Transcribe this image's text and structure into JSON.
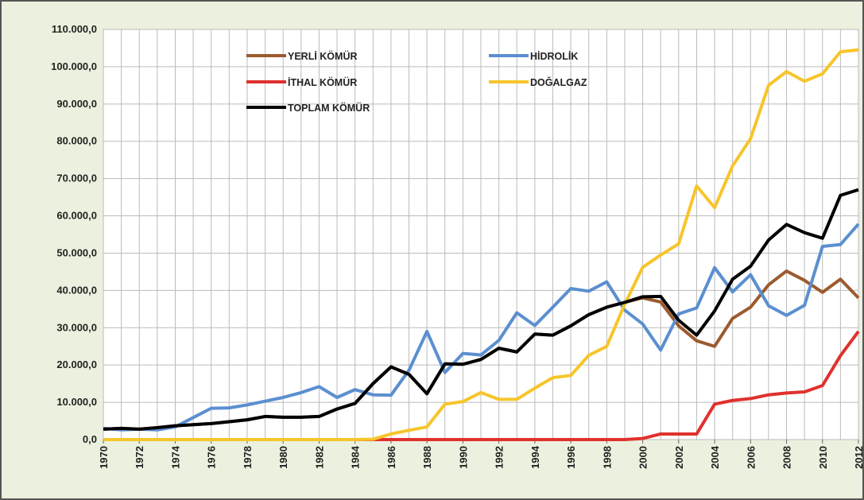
{
  "chart_data": {
    "type": "line",
    "x": [
      1970,
      1971,
      1972,
      1973,
      1974,
      1975,
      1976,
      1977,
      1978,
      1979,
      1980,
      1981,
      1982,
      1983,
      1984,
      1985,
      1986,
      1987,
      1988,
      1989,
      1990,
      1991,
      1992,
      1993,
      1994,
      1995,
      1996,
      1997,
      1998,
      1999,
      2000,
      2001,
      2002,
      2003,
      2004,
      2005,
      2006,
      2007,
      2008,
      2009,
      2010,
      2011,
      2012
    ],
    "xlim": [
      1970,
      2012
    ],
    "xticks": [
      1970,
      1972,
      1974,
      1976,
      1978,
      1980,
      1982,
      1984,
      1986,
      1988,
      1990,
      1992,
      1994,
      1996,
      1998,
      2000,
      2002,
      2004,
      2006,
      2008,
      2010,
      2012
    ],
    "ylim": [
      0,
      110000
    ],
    "yticks": [
      {
        "value": 0,
        "label": "0,0"
      },
      {
        "value": 10000,
        "label": "10.000,0"
      },
      {
        "value": 20000,
        "label": "20.000,0"
      },
      {
        "value": 30000,
        "label": "30.000,0"
      },
      {
        "value": 40000,
        "label": "40.000,0"
      },
      {
        "value": 50000,
        "label": "50.000,0"
      },
      {
        "value": 60000,
        "label": "60.000,0"
      },
      {
        "value": 70000,
        "label": "70.000,0"
      },
      {
        "value": 80000,
        "label": "80.000,0"
      },
      {
        "value": 90000,
        "label": "90.000,0"
      },
      {
        "value": 100000,
        "label": "100.000,0"
      },
      {
        "value": 110000,
        "label": "110.000,0"
      }
    ],
    "grid": true,
    "series": [
      {
        "name": "YERLİ KÖMÜR",
        "color": "#9b5a2e",
        "values": [
          2800,
          3000,
          2800,
          3200,
          3700,
          4000,
          4300,
          4800,
          5300,
          6200,
          6000,
          6000,
          6200,
          8200,
          9700,
          15000,
          19500,
          17500,
          12300,
          20300,
          20200,
          21500,
          24500,
          23500,
          28300,
          28000,
          30500,
          33500,
          35500,
          36800,
          38000,
          36900,
          30500,
          26500,
          25000,
          32500,
          35500,
          41500,
          45200,
          42700,
          39500,
          43000,
          38000
        ]
      },
      {
        "name": "İTHAL KÖMÜR",
        "color": "#e0312d",
        "values": [
          0,
          0,
          0,
          0,
          0,
          0,
          0,
          0,
          0,
          0,
          0,
          0,
          0,
          0,
          0,
          0,
          0,
          0,
          0,
          0,
          0,
          0,
          0,
          0,
          0,
          0,
          0,
          0,
          0,
          0,
          300,
          1500,
          1500,
          1500,
          9500,
          10500,
          11000,
          12000,
          12500,
          12800,
          14500,
          22500,
          29000
        ]
      },
      {
        "name": "HİDROLİK",
        "color": "#5b8fd0",
        "values": [
          3000,
          2600,
          2800,
          2600,
          3400,
          5900,
          8400,
          8500,
          9300,
          10300,
          11300,
          12600,
          14200,
          11300,
          13400,
          12000,
          11900,
          18600,
          29000,
          18000,
          23100,
          22700,
          26600,
          34000,
          30600,
          35500,
          40500,
          39800,
          42300,
          34700,
          31000,
          24000,
          33700,
          35300,
          46100,
          39600,
          44200,
          35900,
          33300,
          36000,
          51800,
          52300,
          57800
        ]
      },
      {
        "name": "DOĞALGAZ",
        "color": "#f7c52b",
        "values": [
          0,
          0,
          0,
          0,
          0,
          0,
          0,
          0,
          0,
          0,
          0,
          0,
          0,
          0,
          0,
          100,
          1500,
          2500,
          3400,
          9500,
          10200,
          12600,
          10800,
          10800,
          13800,
          16600,
          17200,
          22600,
          25000,
          36300,
          46200,
          49500,
          52500,
          68000,
          62200,
          73400,
          80700,
          95000,
          98700,
          96100,
          98100,
          104000,
          104500
        ]
      },
      {
        "name": "TOPLAM KÖMÜR",
        "color": "#000000",
        "values": [
          2800,
          3000,
          2800,
          3200,
          3700,
          4000,
          4300,
          4800,
          5300,
          6200,
          6000,
          6000,
          6200,
          8200,
          9700,
          15000,
          19500,
          17500,
          12300,
          20300,
          20200,
          21500,
          24500,
          23500,
          28300,
          28000,
          30500,
          33500,
          35500,
          36800,
          38300,
          38400,
          32000,
          28000,
          34500,
          43000,
          46500,
          53500,
          57700,
          55500,
          54000,
          65500,
          67000
        ]
      }
    ]
  }
}
